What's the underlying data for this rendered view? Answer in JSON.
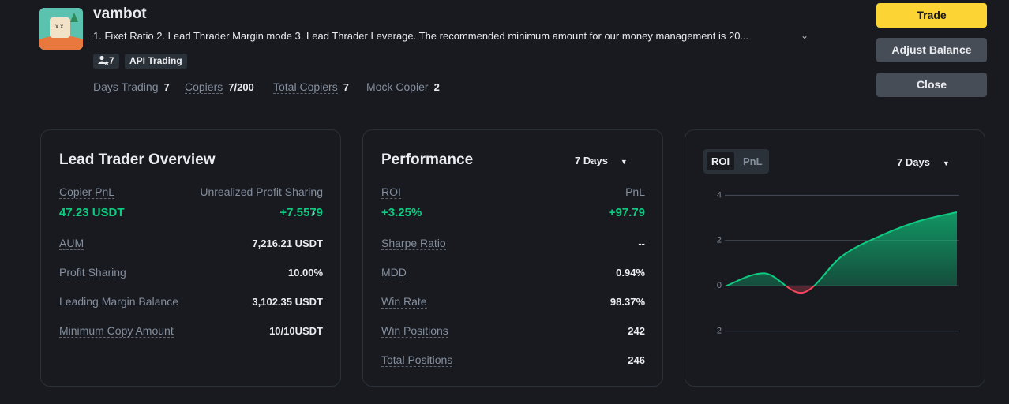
{
  "profile": {
    "name": "vambot",
    "description": "1. Fixet Ratio 2. Lead Thrader Margin mode 3. Lead Thrader Leverage. The recommended minimum amount for our money management is 20...",
    "followers": "7",
    "tag": "API Trading",
    "stats": [
      {
        "label": "Days Trading",
        "value": "7"
      },
      {
        "label": "Copiers",
        "value": "7/200"
      },
      {
        "label": "Total Copiers",
        "value": "7"
      },
      {
        "label": "Mock Copier",
        "value": "2"
      }
    ]
  },
  "actions": [
    "Trade",
    "Adjust Balance",
    "Close"
  ],
  "overview": {
    "title": "Lead Trader Overview",
    "highlight": [
      {
        "label": "Copier PnL",
        "value": "47.23 USDT"
      },
      {
        "label": "Unrealized Profit Sharing",
        "value": "+7.5579"
      }
    ],
    "rows": [
      {
        "label": "AUM",
        "value": "7,216.21 USDT"
      },
      {
        "label": "Profit Sharing",
        "value": "10.00%"
      },
      {
        "label": "Leading Margin Balance",
        "value": "3,102.35 USDT"
      },
      {
        "label": "Minimum Copy Amount",
        "value": "10/10USDT"
      }
    ]
  },
  "performance": {
    "title": "Performance",
    "period": "7 Days",
    "highlight": [
      {
        "label": "ROI",
        "value": "+3.25%"
      },
      {
        "label": "PnL",
        "value": "+97.79"
      }
    ],
    "rows": [
      {
        "label": "Sharpe Ratio",
        "value": "--"
      },
      {
        "label": "MDD",
        "value": "0.94%"
      },
      {
        "label": "Win Rate",
        "value": "98.37%"
      },
      {
        "label": "Win Positions",
        "value": "242"
      },
      {
        "label": "Total Positions",
        "value": "246"
      }
    ]
  },
  "chart_panel": {
    "tabs": [
      "ROI",
      "PnL"
    ],
    "period": "7 Days"
  },
  "chart_data": {
    "type": "area",
    "values": [
      0,
      0.55,
      -0.3,
      1.3,
      2.2,
      2.85,
      3.25
    ],
    "ylim": [
      -2.5,
      4.5
    ],
    "yticks": [
      -2,
      0,
      2,
      4
    ],
    "grid": true,
    "color": "#0ecb81",
    "negative_color": "#f6465d"
  }
}
